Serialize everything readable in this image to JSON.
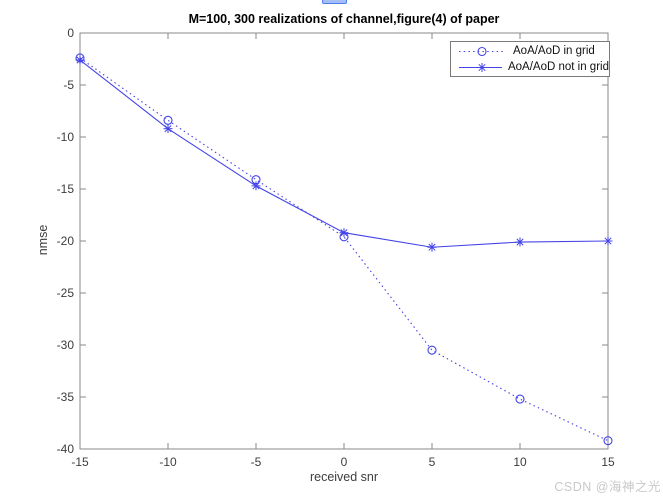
{
  "page": {
    "watermark": "CSDN @海神之光"
  },
  "chart_data": {
    "type": "line",
    "title": "M=100, 300 realizations of channel,figure(4) of paper",
    "xlabel": "received snr",
    "ylabel": "nmse",
    "x": [
      -15,
      -10,
      -5,
      0,
      5,
      10,
      15
    ],
    "series": [
      {
        "name": "AoA/AoD in grid",
        "values": [
          -2.4,
          -8.4,
          -14.1,
          -19.6,
          -30.5,
          -35.2,
          -39.2
        ],
        "line_style": "dotted",
        "marker": "circle"
      },
      {
        "name": "AoA/AoD not in grid",
        "values": [
          -2.6,
          -9.2,
          -14.7,
          -19.2,
          -20.6,
          -20.1,
          -20.0
        ],
        "line_style": "solid",
        "marker": "asterisk"
      }
    ],
    "xlim": [
      -15,
      15
    ],
    "ylim": [
      -40,
      0
    ],
    "xticks": [
      -15,
      -10,
      -5,
      0,
      5,
      10,
      15
    ],
    "yticks": [
      0,
      -5,
      -10,
      -15,
      -20,
      -25,
      -30,
      -35,
      -40
    ],
    "grid": false,
    "legend_position": "top-right"
  },
  "colors": {
    "series": "#4343e8",
    "axis": "#8a8a8a",
    "tick_text": "#3d3d3d",
    "title_text": "#000000",
    "legend_border": "#7a7a7a",
    "watermark": "#c9c9c9",
    "accent_bar_fill": "#a6bef8",
    "accent_bar_border": "#4d7ef0"
  }
}
